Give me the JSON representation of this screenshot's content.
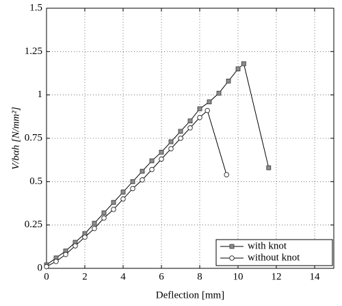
{
  "chart_data": {
    "type": "line",
    "xlabel": "Deflection [mm]",
    "ylabel": "V/bαh [N/mm²]",
    "xlim": [
      0,
      15
    ],
    "xticks": [
      0,
      2,
      4,
      6,
      8,
      10,
      12,
      14
    ],
    "ylim": [
      0,
      1.5
    ],
    "yticks": [
      0,
      0.25,
      0.5,
      0.75,
      1,
      1.25,
      1.5
    ],
    "grid": true,
    "legend": "lower right",
    "series": [
      {
        "name": "with knot",
        "color": "#8c8c8c",
        "marker": "square",
        "x": [
          0,
          0.5,
          1,
          1.5,
          2,
          2.5,
          3,
          3.5,
          4,
          4.5,
          5,
          5.5,
          6,
          6.5,
          7,
          7.5,
          8,
          8.5,
          9,
          9.5,
          10,
          10.3,
          11.6
        ],
        "values": [
          0.02,
          0.06,
          0.1,
          0.15,
          0.2,
          0.26,
          0.32,
          0.38,
          0.44,
          0.5,
          0.56,
          0.62,
          0.67,
          0.73,
          0.79,
          0.85,
          0.92,
          0.96,
          1.01,
          1.08,
          1.15,
          1.18,
          0.58
        ]
      },
      {
        "name": "without knot",
        "color": "#ffffff",
        "marker": "circle",
        "x": [
          0,
          0.5,
          1,
          1.5,
          2,
          2.5,
          3,
          3.5,
          4,
          4.5,
          5,
          5.5,
          6,
          6.5,
          7,
          7.5,
          8,
          8.4,
          9.4
        ],
        "values": [
          0.01,
          0.04,
          0.08,
          0.13,
          0.18,
          0.23,
          0.29,
          0.34,
          0.4,
          0.46,
          0.51,
          0.57,
          0.63,
          0.69,
          0.75,
          0.81,
          0.87,
          0.91,
          0.54
        ]
      }
    ]
  }
}
